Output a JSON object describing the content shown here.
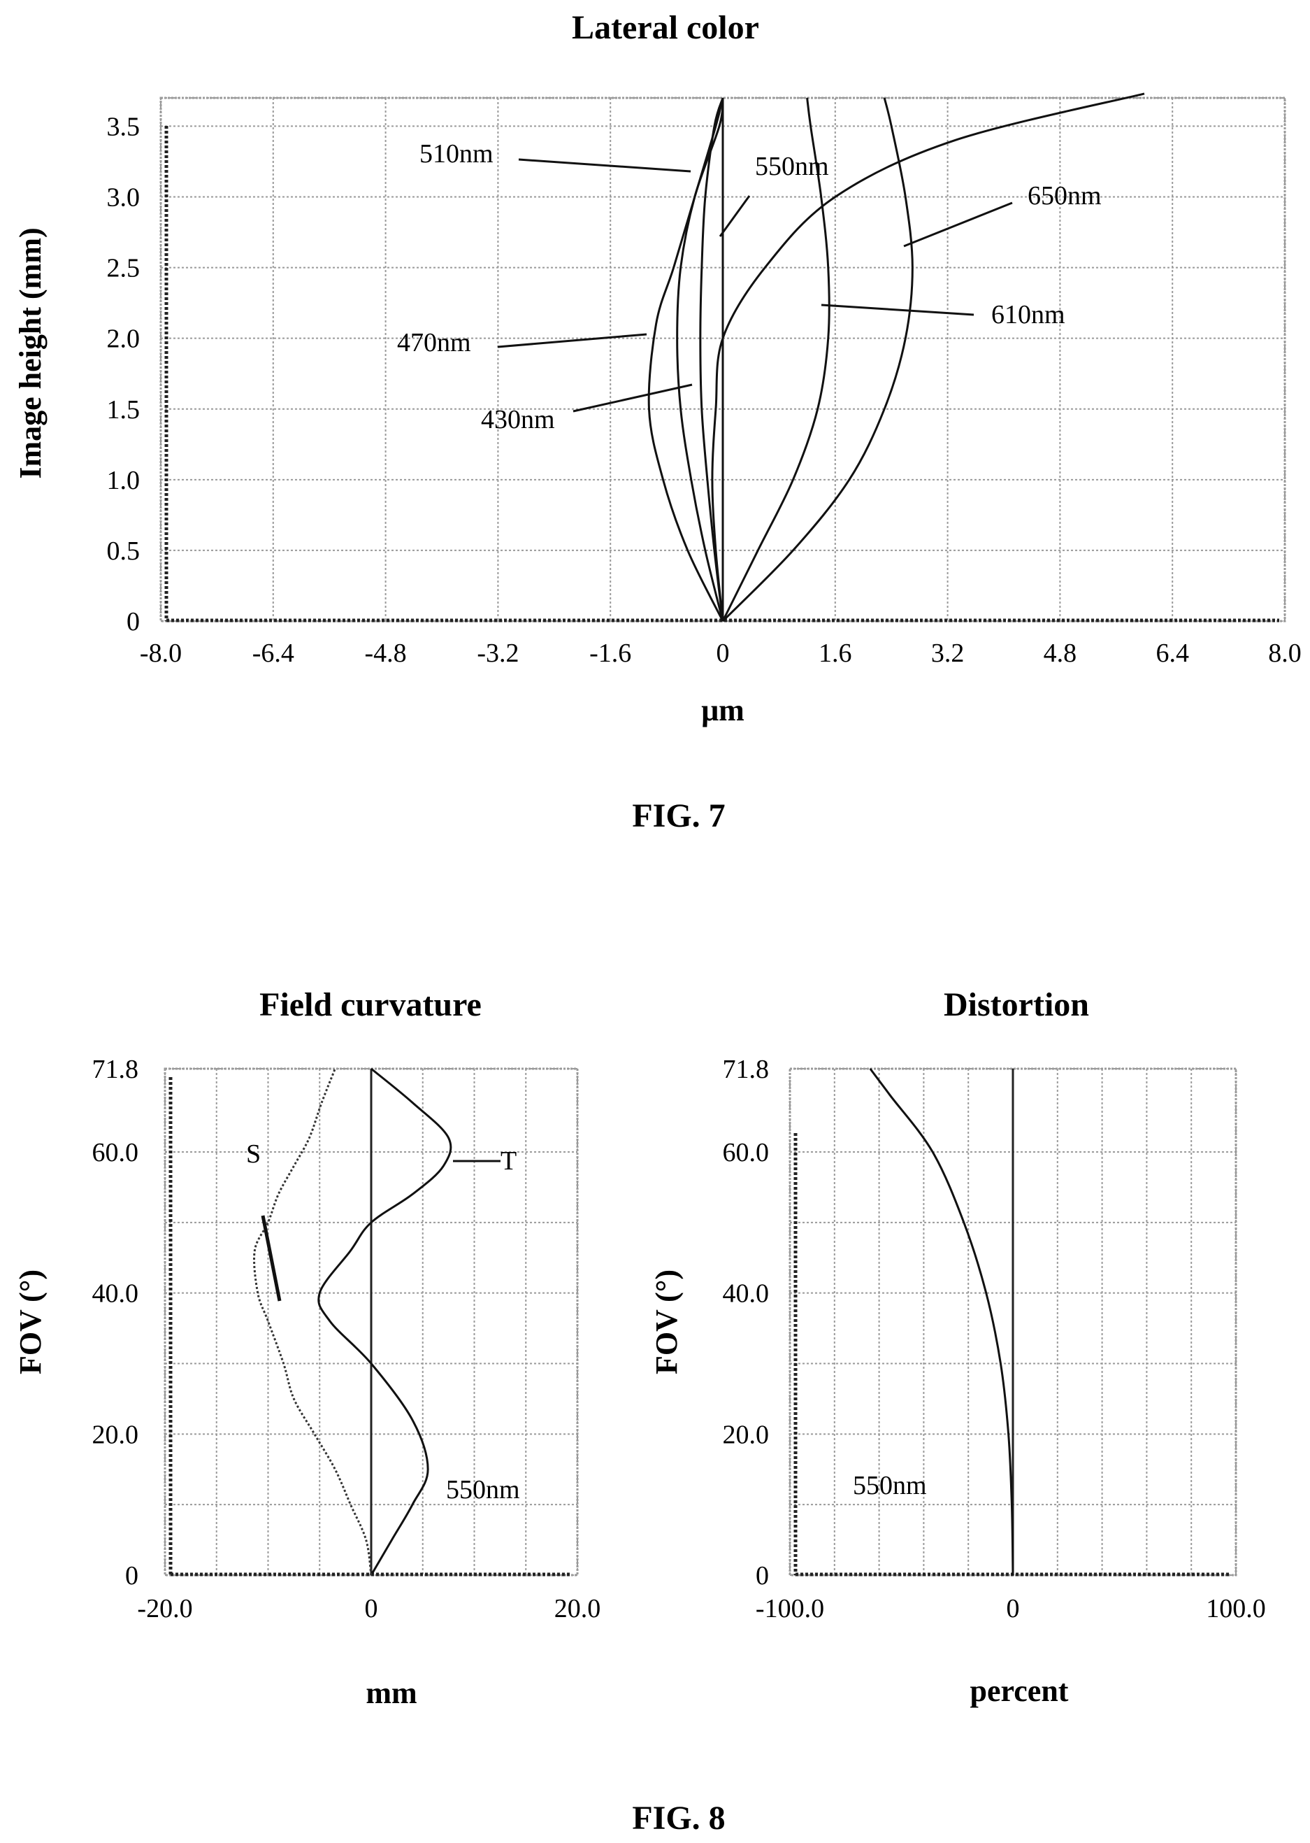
{
  "fig7": {
    "caption": "FIG. 7",
    "chart_data": {
      "type": "line",
      "title": "Lateral color",
      "xlabel": "μm",
      "ylabel": "Image height (mm)",
      "xlim": [
        -8.0,
        8.0
      ],
      "ylim": [
        0,
        3.7
      ],
      "xticks": [
        -8.0,
        -6.4,
        -4.8,
        -3.2,
        -1.6,
        0,
        1.6,
        3.2,
        4.8,
        6.4,
        8.0
      ],
      "xtick_labels": [
        "-8.0",
        "-6.4",
        "-4.8",
        "-3.2",
        "-1.6",
        "0",
        "1.6",
        "3.2",
        "4.8",
        "6.4",
        "8.0"
      ],
      "yticks": [
        0,
        0.5,
        1.0,
        1.5,
        2.0,
        2.5,
        3.0,
        3.5
      ],
      "ytick_labels": [
        "0",
        "0.5",
        "1.0",
        "1.5",
        "2.0",
        "2.5",
        "3.0",
        "3.5"
      ],
      "grid": true,
      "series": [
        {
          "name": "430nm",
          "points": [
            [
              0,
              0
            ],
            [
              -0.25,
              0.5
            ],
            [
              -0.45,
              1.0
            ],
            [
              -0.6,
              1.5
            ],
            [
              -0.65,
              2.0
            ],
            [
              -0.6,
              2.5
            ],
            [
              -0.4,
              3.0
            ],
            [
              -0.05,
              3.5
            ],
            [
              0,
              3.7
            ]
          ]
        },
        {
          "name": "470nm",
          "points": [
            [
              0,
              0
            ],
            [
              -0.5,
              0.5
            ],
            [
              -0.85,
              1.0
            ],
            [
              -1.05,
              1.5
            ],
            [
              -0.95,
              2.1
            ],
            [
              -0.7,
              2.5
            ],
            [
              -0.4,
              3.0
            ],
            [
              -0.1,
              3.5
            ],
            [
              0,
              3.7
            ]
          ]
        },
        {
          "name": "510nm",
          "points": [
            [
              0,
              0
            ],
            [
              -0.12,
              0.5
            ],
            [
              -0.22,
              1.0
            ],
            [
              -0.3,
              1.5
            ],
            [
              -0.32,
              2.0
            ],
            [
              -0.3,
              2.5
            ],
            [
              -0.25,
              3.0
            ],
            [
              -0.12,
              3.5
            ],
            [
              0,
              3.7
            ]
          ]
        },
        {
          "name": "550nm",
          "points": [
            [
              0,
              0
            ],
            [
              0,
              3.7
            ]
          ]
        },
        {
          "name": "610nm",
          "points": [
            [
              0,
              0
            ],
            [
              0.5,
              0.5
            ],
            [
              1.0,
              1.0
            ],
            [
              1.35,
              1.5
            ],
            [
              1.5,
              2.0
            ],
            [
              1.5,
              2.5
            ],
            [
              1.4,
              3.0
            ],
            [
              1.25,
              3.5
            ],
            [
              1.2,
              3.7
            ]
          ]
        },
        {
          "name": "650nm",
          "points": [
            [
              0,
              0
            ],
            [
              1.0,
              0.5
            ],
            [
              1.8,
              1.0
            ],
            [
              2.3,
              1.5
            ],
            [
              2.6,
              2.0
            ],
            [
              2.7,
              2.5
            ],
            [
              2.6,
              3.0
            ],
            [
              2.4,
              3.5
            ],
            [
              2.3,
              3.7
            ]
          ]
        },
        {
          "name": "",
          "points": [
            [
              0,
              0
            ],
            [
              -0.1,
              0.5
            ],
            [
              -0.15,
              1.0
            ],
            [
              -0.1,
              1.5
            ],
            [
              0,
              2.0
            ],
            [
              0.6,
              2.5
            ],
            [
              1.6,
              3.0
            ],
            [
              3.3,
              3.4
            ],
            [
              6.0,
              3.73
            ]
          ]
        }
      ],
      "annotations": [
        "510nm",
        "550nm",
        "650nm",
        "610nm",
        "470nm",
        "430nm"
      ]
    }
  },
  "fig8": {
    "caption": "FIG. 8",
    "field_curvature": {
      "chart_data": {
        "type": "line",
        "title": "Field curvature",
        "xlabel": "mm",
        "ylabel": "FOV (°)",
        "xlim": [
          -20.0,
          20.0
        ],
        "ylim": [
          0,
          71.8
        ],
        "xtick_labels": [
          "-20.0",
          "0",
          "20.0"
        ],
        "ytick_labels": [
          "0",
          "20.0",
          "40.0",
          "60.0",
          "71.8"
        ],
        "grid": true,
        "series": [
          {
            "name": "T",
            "points": [
              [
                0,
                0
              ],
              [
                2,
                5
              ],
              [
                4,
                10
              ],
              [
                5.5,
                15
              ],
              [
                4,
                22
              ],
              [
                0,
                30
              ],
              [
                -4,
                36
              ],
              [
                -5,
                40
              ],
              [
                -2,
                46
              ],
              [
                0,
                50
              ],
              [
                4,
                54
              ],
              [
                7,
                58
              ],
              [
                7.5,
                62
              ],
              [
                4,
                67
              ],
              [
                0,
                71.8
              ]
            ]
          },
          {
            "name": "S",
            "points": [
              [
                0,
                0
              ],
              [
                -0.5,
                5
              ],
              [
                -2,
                10
              ],
              [
                -3.5,
                15
              ],
              [
                -5.5,
                20
              ],
              [
                -7.5,
                25
              ],
              [
                -8.5,
                30
              ],
              [
                -10,
                36
              ],
              [
                -11,
                40
              ],
              [
                -11.3,
                46
              ],
              [
                -10,
                50
              ],
              [
                -9,
                54
              ],
              [
                -7.5,
                58
              ],
              [
                -6,
                62
              ],
              [
                -4.8,
                67
              ],
              [
                -3.5,
                71.8
              ]
            ]
          }
        ],
        "annotations": [
          "S",
          "T",
          "550nm"
        ]
      }
    },
    "distortion": {
      "chart_data": {
        "type": "line",
        "title": "Distortion",
        "xlabel": "percent",
        "ylabel": "FOV (°)",
        "xlim": [
          -100.0,
          100.0
        ],
        "ylim": [
          0,
          71.8
        ],
        "xtick_labels": [
          "-100.0",
          "0",
          "100.0"
        ],
        "ytick_labels": [
          "0",
          "20.0",
          "40.0",
          "60.0",
          "71.8"
        ],
        "grid": true,
        "series": [
          {
            "name": "550nm",
            "points": [
              [
                0,
                0
              ],
              [
                -0.5,
                10
              ],
              [
                -2,
                20
              ],
              [
                -5.5,
                30
              ],
              [
                -12,
                40
              ],
              [
                -22,
                50
              ],
              [
                -36,
                60
              ],
              [
                -55,
                68
              ],
              [
                -64,
                71.8
              ]
            ]
          }
        ],
        "annotations": [
          "550nm"
        ]
      }
    }
  }
}
